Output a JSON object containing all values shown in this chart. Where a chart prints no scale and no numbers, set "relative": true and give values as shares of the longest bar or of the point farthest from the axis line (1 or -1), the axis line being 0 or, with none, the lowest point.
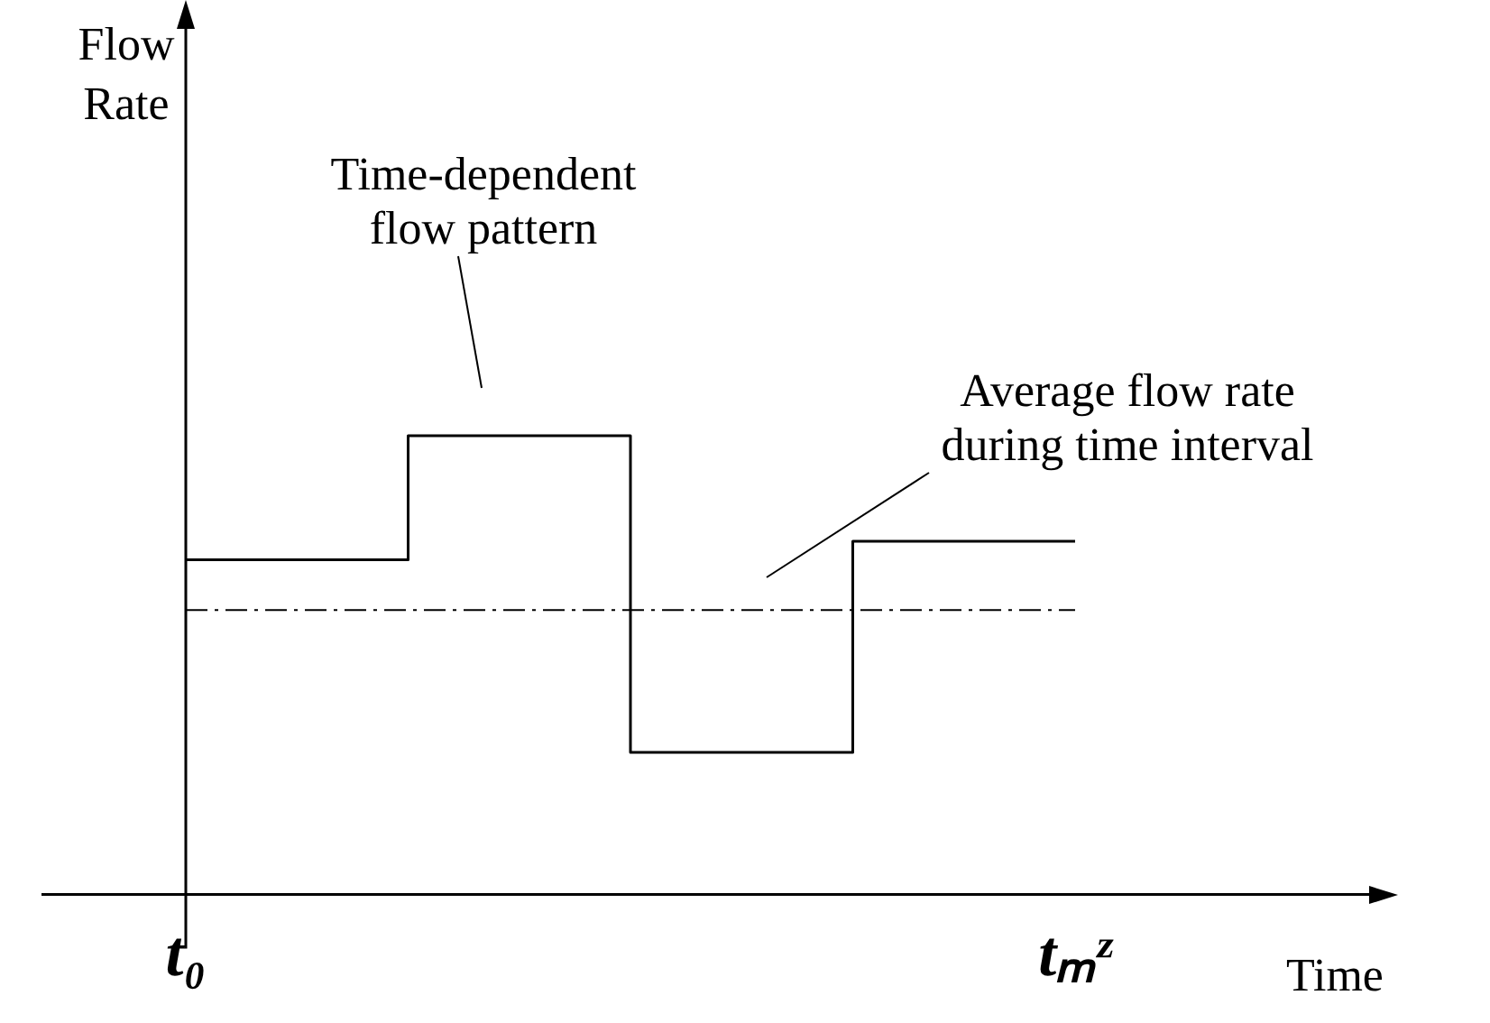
{
  "chart_data": {
    "type": "step",
    "relative": true,
    "xlabel": "Time",
    "categories": [
      "t₀",
      null,
      null,
      null,
      "tₘᶻ"
    ],
    "values": [
      0.73,
      1,
      0.31,
      0.77,
      0.77
    ],
    "color": "#000000",
    "ref_lines": [
      {
        "axis": "y",
        "value": 0.62,
        "line_style": "dashed",
        "color": "#000000"
      }
    ],
    "annotations": [
      "Flow Rate",
      "Time-dependent flow pattern",
      "Average flow rate during time interval"
    ],
    "grid": false,
    "legend": false
  }
}
